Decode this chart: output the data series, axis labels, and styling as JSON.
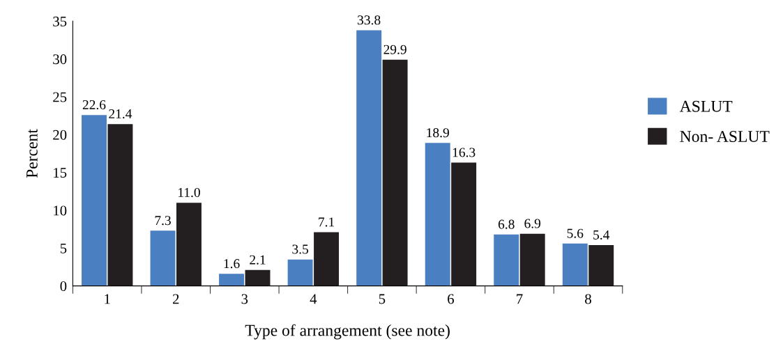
{
  "chart_data": {
    "type": "bar",
    "xlabel": "Type of arrangement (see note)",
    "ylabel": "Percent",
    "categories": [
      "1",
      "2",
      "3",
      "4",
      "5",
      "6",
      "7",
      "8"
    ],
    "series": [
      {
        "name": "ASLUT",
        "color": "#4a7fc1",
        "values": [
          22.6,
          7.3,
          1.6,
          3.5,
          33.8,
          18.9,
          6.8,
          5.6
        ],
        "value_labels": [
          "22.6",
          "7.3",
          "1.6",
          "3.5",
          "33.8",
          "18.9",
          "6.8",
          "5.6"
        ]
      },
      {
        "name": "Non- ASLUT",
        "color": "#231f20",
        "values": [
          21.4,
          11.0,
          2.1,
          7.1,
          29.9,
          16.3,
          6.9,
          5.4
        ],
        "value_labels": [
          "21.4",
          "11.0",
          "2.1",
          "7.1",
          "29.9",
          "16.3",
          "6.9",
          "5.4"
        ]
      }
    ],
    "ylim": [
      0,
      35
    ],
    "yticks": [
      0,
      5,
      10,
      15,
      20,
      25,
      30,
      35
    ],
    "grid": false,
    "legend": "right"
  }
}
